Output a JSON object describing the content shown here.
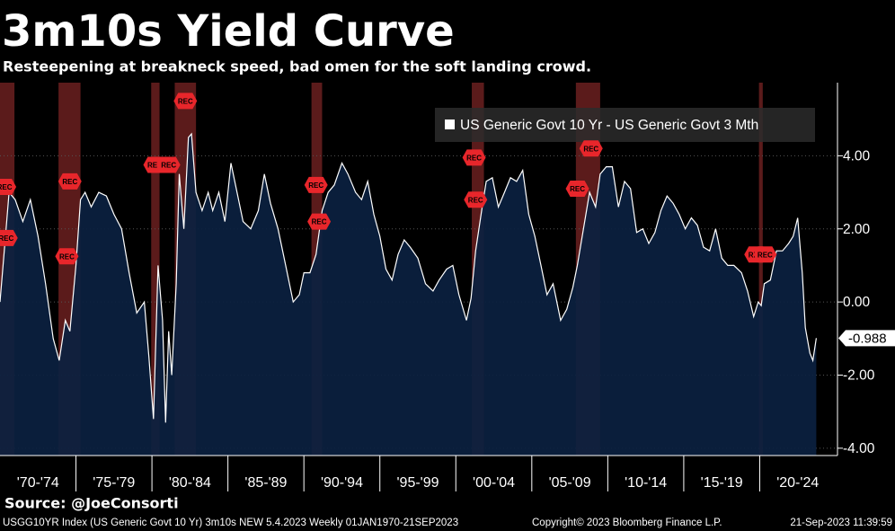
{
  "chart_data": {
    "type": "area",
    "title": "3m10s Yield Curve",
    "subtitle": "Resteepening at breakneck speed, bad omen for the soft landing crowd.",
    "source": "Source:  @JoeConsorti",
    "footer_left": "USGG10YR Index (US Generic Govt 10 Yr) 3m10s NEW 5.4.2023   Weekly 01JAN1970-21SEP2023",
    "footer_center": "Copyright© 2023 Bloomberg Finance L.P.",
    "footer_right": "21-Sep-2023 11:39:59",
    "x": [
      1970.0,
      1970.3,
      1970.6,
      1971.0,
      1971.5,
      1972.0,
      1972.5,
      1973.0,
      1973.5,
      1973.9,
      1974.3,
      1974.6,
      1975.0,
      1975.3,
      1975.6,
      1976.0,
      1976.5,
      1977.0,
      1977.5,
      1978.0,
      1978.5,
      1979.0,
      1979.5,
      1979.8,
      1980.1,
      1980.4,
      1980.7,
      1980.9,
      1981.1,
      1981.3,
      1981.6,
      1981.8,
      1982.1,
      1982.4,
      1982.6,
      1982.9,
      1983.3,
      1983.7,
      1984.0,
      1984.4,
      1984.8,
      1985.2,
      1985.6,
      1986.0,
      1986.5,
      1987.0,
      1987.4,
      1987.8,
      1988.3,
      1988.8,
      1989.3,
      1989.7,
      1990.0,
      1990.4,
      1990.8,
      1991.2,
      1991.6,
      1992.0,
      1992.5,
      1992.9,
      1993.4,
      1993.8,
      1994.2,
      1994.6,
      1995.0,
      1995.4,
      1995.8,
      1996.2,
      1996.6,
      1997.0,
      1997.5,
      1998.0,
      1998.5,
      1998.9,
      1999.4,
      1999.8,
      2000.2,
      2000.7,
      2001.0,
      2001.3,
      2001.7,
      2002.0,
      2002.4,
      2002.8,
      2003.2,
      2003.6,
      2004.0,
      2004.4,
      2004.8,
      2005.2,
      2005.6,
      2006.0,
      2006.4,
      2006.9,
      2007.3,
      2007.7,
      2008.0,
      2008.4,
      2008.8,
      2009.2,
      2009.5,
      2009.9,
      2010.3,
      2010.7,
      2011.1,
      2011.5,
      2011.9,
      2012.3,
      2012.7,
      2013.1,
      2013.5,
      2013.9,
      2014.3,
      2014.7,
      2015.1,
      2015.5,
      2015.9,
      2016.3,
      2016.7,
      2017.1,
      2017.5,
      2017.9,
      2018.3,
      2018.8,
      2019.2,
      2019.6,
      2019.9,
      2020.1,
      2020.3,
      2020.7,
      2021.1,
      2021.5,
      2021.9,
      2022.2,
      2022.5,
      2022.8,
      2023.0,
      2023.3,
      2023.5,
      2023.72
    ],
    "series": [
      {
        "name": "US Generic Govt 10 Yr - US Generic Govt 3 Mth",
        "color": "#ffffff",
        "fill": "#0b2140",
        "values": [
          0.0,
          1.5,
          3.0,
          2.8,
          2.2,
          2.8,
          1.8,
          0.5,
          -1.0,
          -1.6,
          -0.5,
          -0.8,
          1.0,
          2.8,
          3.0,
          2.6,
          3.0,
          2.9,
          2.4,
          2.0,
          0.8,
          -0.3,
          0.0,
          -1.5,
          -3.2,
          1.0,
          -0.5,
          -3.3,
          -0.8,
          -2.0,
          0.5,
          3.5,
          2.0,
          4.5,
          4.6,
          3.0,
          2.5,
          3.0,
          2.5,
          3.0,
          2.2,
          3.8,
          3.0,
          2.2,
          2.0,
          2.5,
          3.5,
          2.7,
          2.0,
          1.0,
          0.0,
          0.2,
          0.8,
          0.8,
          1.3,
          2.5,
          3.0,
          3.2,
          3.8,
          3.5,
          3.0,
          2.8,
          3.3,
          2.4,
          1.8,
          0.9,
          0.6,
          1.3,
          1.7,
          1.5,
          1.2,
          0.5,
          0.3,
          0.6,
          0.9,
          1.0,
          0.2,
          -0.5,
          0.1,
          1.4,
          2.5,
          3.3,
          3.4,
          2.6,
          3.0,
          3.4,
          3.3,
          3.6,
          2.4,
          1.8,
          1.0,
          0.2,
          0.5,
          -0.5,
          -0.2,
          0.4,
          1.0,
          2.0,
          3.0,
          2.6,
          3.5,
          3.7,
          3.7,
          2.6,
          3.3,
          3.1,
          1.9,
          2.0,
          1.6,
          1.9,
          2.5,
          2.9,
          2.7,
          2.4,
          2.0,
          2.3,
          2.1,
          1.5,
          1.4,
          2.0,
          1.2,
          1.0,
          1.0,
          0.8,
          0.3,
          -0.4,
          0.0,
          -0.1,
          0.5,
          0.6,
          1.4,
          1.4,
          1.6,
          1.8,
          2.3,
          0.8,
          -0.7,
          -1.4,
          -1.6,
          -0.988
        ]
      }
    ],
    "recessions": [
      [
        1970.0,
        1970.95
      ],
      [
        1973.85,
        1975.3
      ],
      [
        1979.95,
        1980.5
      ],
      [
        1981.5,
        1982.9
      ],
      [
        1990.5,
        1991.2
      ],
      [
        2001.05,
        2001.85
      ],
      [
        2007.9,
        2009.5
      ],
      [
        2019.95,
        2020.2
      ]
    ],
    "annotations": [
      {
        "x": 1970.3,
        "y": 3.15,
        "label": "REC"
      },
      {
        "x": 1970.4,
        "y": 1.75,
        "label": "REC"
      },
      {
        "x": 1974.6,
        "y": 3.3,
        "label": "REC"
      },
      {
        "x": 1974.4,
        "y": 1.25,
        "label": "REC"
      },
      {
        "x": 1980.2,
        "y": 3.75,
        "label": "REC"
      },
      {
        "x": 1981.1,
        "y": 3.75,
        "label": "REC"
      },
      {
        "x": 1982.2,
        "y": 5.5,
        "label": "REC"
      },
      {
        "x": 1990.8,
        "y": 3.2,
        "label": "REC"
      },
      {
        "x": 1991.0,
        "y": 2.2,
        "label": "REC"
      },
      {
        "x": 2001.2,
        "y": 3.95,
        "label": "REC"
      },
      {
        "x": 2001.3,
        "y": 2.8,
        "label": "REC"
      },
      {
        "x": 2008.0,
        "y": 3.1,
        "label": "REC"
      },
      {
        "x": 2008.9,
        "y": 4.2,
        "label": "REC"
      },
      {
        "x": 2019.75,
        "y": 1.3,
        "label": "REC"
      },
      {
        "x": 2020.35,
        "y": 1.3,
        "label": "REC"
      }
    ],
    "xlim": [
      1970,
      2025
    ],
    "ylim": [
      -4.2,
      6
    ],
    "yticks": [
      {
        "value": 4,
        "label": "4.00"
      },
      {
        "value": 2,
        "label": "2.00"
      },
      {
        "value": 0,
        "label": "0.00"
      },
      {
        "value": -2,
        "label": "-2.00"
      },
      {
        "value": -4,
        "label": "-4.00"
      }
    ],
    "xticks": [
      1975,
      1980,
      1985,
      1990,
      1995,
      2000,
      2005,
      2010,
      2015,
      2020
    ],
    "periods": [
      {
        "label": "'70-'74",
        "start": 1970,
        "end": 1975
      },
      {
        "label": "'75-'79",
        "start": 1975,
        "end": 1980
      },
      {
        "label": "'80-'84",
        "start": 1980,
        "end": 1985
      },
      {
        "label": "'85-'89",
        "start": 1985,
        "end": 1990
      },
      {
        "label": "'90-'94",
        "start": 1990,
        "end": 1995
      },
      {
        "label": "'95-'99",
        "start": 1995,
        "end": 2000
      },
      {
        "label": "'00-'04",
        "start": 2000,
        "end": 2005
      },
      {
        "label": "'05-'09",
        "start": 2005,
        "end": 2010
      },
      {
        "label": "'10-'14",
        "start": 2010,
        "end": 2015
      },
      {
        "label": "'15-'19",
        "start": 2015,
        "end": 2020
      },
      {
        "label": "'20-'24",
        "start": 2020,
        "end": 2025
      }
    ],
    "recession_color": "#7a2424",
    "marker_color": "#e8262b"
  }
}
